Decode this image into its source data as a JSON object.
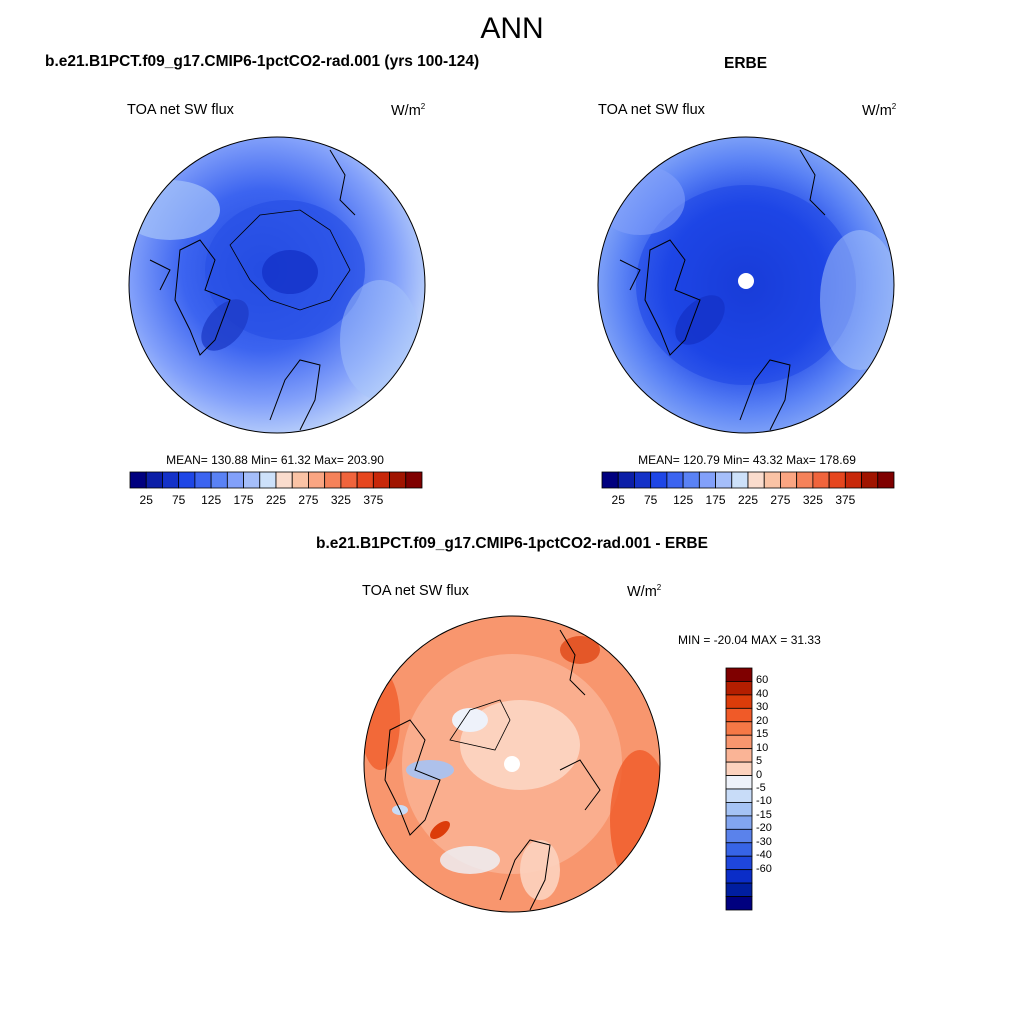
{
  "title": "ANN",
  "panel_left": {
    "title": "b.e21.B1PCT.f09_g17.CMIP6-1pctCO2-rad.001 (yrs 100-124)",
    "variable": "TOA net SW flux",
    "units": "W/m",
    "units_sup": "2",
    "stats": "MEAN= 130.88  Min=  61.32  Max= 203.90"
  },
  "panel_right": {
    "title": "ERBE",
    "variable": "TOA net SW flux",
    "units": "W/m",
    "units_sup": "2",
    "stats": "MEAN= 120.79  Min=  43.32  Max= 178.69"
  },
  "panel_diff": {
    "title": "b.e21.B1PCT.f09_g17.CMIP6-1pctCO2-rad.001 - ERBE",
    "variable": "TOA net SW flux",
    "units": "W/m",
    "units_sup": "2",
    "minmax": "MIN = -20.04 MAX =  31.33"
  },
  "colorbar_abs": {
    "colors": [
      "#00007f",
      "#0b1ea7",
      "#1432c8",
      "#1e46e6",
      "#3c64f0",
      "#5a82f5",
      "#82a0fa",
      "#a5befa",
      "#cde1fa",
      "#fadccd",
      "#fac3a5",
      "#faa582",
      "#f5825a",
      "#f0643c",
      "#e6461e",
      "#c8280a",
      "#a01400",
      "#7f0000"
    ],
    "ticks": [
      "25",
      "75",
      "125",
      "175",
      "225",
      "275",
      "325",
      "375"
    ]
  },
  "colorbar_diff": {
    "colors": [
      "#7f0000",
      "#b41e00",
      "#dc3c0a",
      "#f05a28",
      "#f57846",
      "#f8966e",
      "#fab496",
      "#fcd2be",
      "#eef2fa",
      "#c8dcf8",
      "#a5c3f5",
      "#82a5f0",
      "#5a82eb",
      "#3764e6",
      "#1e46dc",
      "#0a2dc8",
      "#001ea0",
      "#00007f"
    ],
    "ticks": [
      "60",
      "40",
      "30",
      "20",
      "15",
      "10",
      "5",
      "0",
      "-5",
      "-10",
      "-15",
      "-20",
      "-30",
      "-40",
      "-60"
    ]
  }
}
